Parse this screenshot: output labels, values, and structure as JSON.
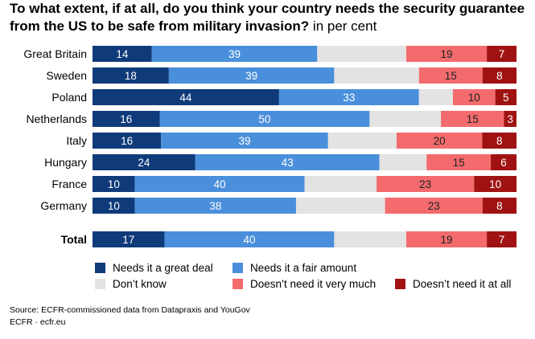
{
  "title": {
    "main": "To what extent, if at all, do you think your country needs the security guarantee from the US to be safe from military invasion?",
    "unit": "in per cent"
  },
  "chart_data": {
    "type": "bar",
    "orientation": "horizontal",
    "stacked": true,
    "categories": [
      "Great Britain",
      "Sweden",
      "Poland",
      "Netherlands",
      "Italy",
      "Hungary",
      "France",
      "Germany",
      "Total"
    ],
    "emphasized_categories": [
      "Total"
    ],
    "series": [
      {
        "name": "Needs it a great deal",
        "color": "#0f3b7a",
        "values": [
          14,
          18,
          44,
          16,
          16,
          24,
          10,
          10,
          17
        ],
        "labels": [
          "14",
          "18",
          "44",
          "16",
          "16",
          "24",
          "10",
          "10",
          "17"
        ]
      },
      {
        "name": "Needs it a fair amount",
        "color": "#4a8fdb",
        "values": [
          39,
          39,
          33,
          50,
          39,
          43,
          40,
          38,
          40
        ],
        "labels": [
          "39",
          "39",
          "33",
          "50",
          "39",
          "43",
          "40",
          "38",
          "40"
        ]
      },
      {
        "name": "Don’t know",
        "color": "#e3e3e3",
        "values": [
          21,
          20,
          8,
          17,
          16,
          11,
          17,
          21,
          17
        ],
        "labels": [
          "",
          "",
          "",
          "",
          "",
          "",
          "",
          "",
          ""
        ]
      },
      {
        "name": "Doesn’t need it very much",
        "color": "#f36b6d",
        "values": [
          19,
          15,
          10,
          15,
          20,
          15,
          23,
          23,
          19
        ],
        "labels": [
          "19",
          "15",
          "10",
          "15",
          "20",
          "15",
          "23",
          "23",
          "19"
        ]
      },
      {
        "name": "Doesn’t need it at all",
        "color": "#a01212",
        "values": [
          7,
          8,
          5,
          3,
          8,
          6,
          10,
          8,
          7
        ],
        "labels": [
          "7",
          "8",
          "5",
          "3",
          "8",
          "6",
          "10",
          "8",
          "7"
        ]
      }
    ],
    "xlim": [
      0,
      100
    ],
    "legend_position": "bottom"
  },
  "source": {
    "line1": "Source: ECFR-commissioned data from Datapraxis and YouGov",
    "line2": "ECFR · ecfr.eu"
  }
}
